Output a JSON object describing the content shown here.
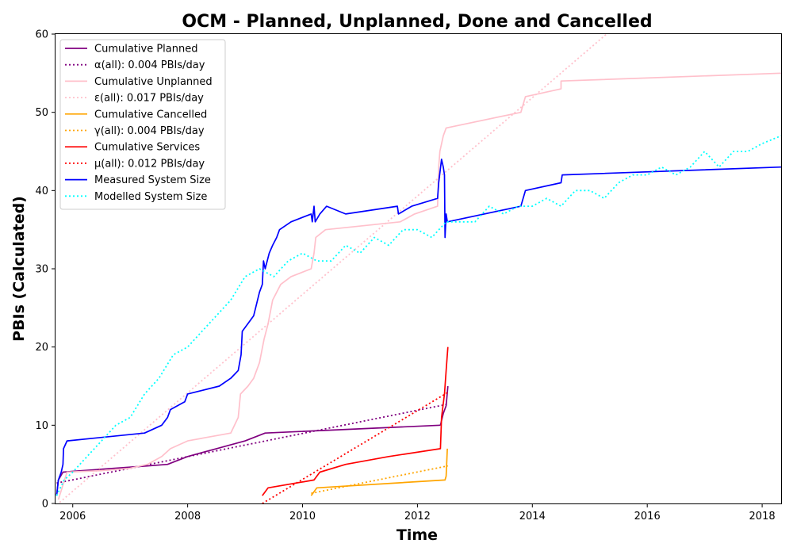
{
  "chart_data": {
    "type": "line",
    "title": "OCM - Planned, Unplanned, Done  and Cancelled",
    "xlabel": "Time",
    "ylabel": "PBIs (Calculated)",
    "xlim": [
      2005.7,
      2018.33
    ],
    "ylim": [
      0,
      60
    ],
    "xticks": [
      2006,
      2008,
      2010,
      2012,
      2014,
      2016,
      2018
    ],
    "yticks": [
      0,
      10,
      20,
      30,
      40,
      50,
      60
    ],
    "legend_position": "top-left",
    "series": [
      {
        "name": "Cumulative Planned",
        "style": "solid",
        "color": "#800080",
        "points": [
          [
            2005.72,
            1
          ],
          [
            2005.75,
            3
          ],
          [
            2005.83,
            4
          ],
          [
            2006.0,
            4.1
          ],
          [
            2007.3,
            4.8
          ],
          [
            2007.65,
            5
          ],
          [
            2008.0,
            6
          ],
          [
            2008.5,
            7
          ],
          [
            2009.0,
            8
          ],
          [
            2009.35,
            9
          ],
          [
            2012.4,
            10
          ]
        ],
        "tail": [
          [
            2012.4,
            10
          ],
          [
            2012.45,
            11.5
          ],
          [
            2012.5,
            12.5
          ],
          [
            2012.53,
            15
          ]
        ]
      },
      {
        "name": "α(all): 0.004 PBIs/day",
        "style": "dotted",
        "color": "#800080",
        "points": [
          [
            2005.72,
            2.6
          ],
          [
            2012.53,
            12.7
          ]
        ]
      },
      {
        "name": "Cumulative Unplanned",
        "style": "solid",
        "color": "#ffc0cb",
        "points": [
          [
            2005.75,
            0.5
          ],
          [
            2005.9,
            4
          ],
          [
            2006.5,
            4.2
          ],
          [
            2007.0,
            4.5
          ],
          [
            2007.3,
            5
          ],
          [
            2007.55,
            6
          ],
          [
            2007.7,
            7
          ],
          [
            2008.0,
            8
          ],
          [
            2008.3,
            8.4
          ],
          [
            2008.6,
            8.8
          ],
          [
            2008.75,
            9
          ],
          [
            2008.88,
            11
          ],
          [
            2008.92,
            14
          ],
          [
            2009.05,
            15
          ],
          [
            2009.15,
            16
          ],
          [
            2009.25,
            18
          ],
          [
            2009.33,
            21
          ],
          [
            2009.4,
            23
          ],
          [
            2009.48,
            26
          ],
          [
            2009.62,
            28
          ],
          [
            2009.8,
            29
          ],
          [
            2010.15,
            30
          ],
          [
            2010.2,
            32
          ],
          [
            2010.23,
            34
          ],
          [
            2010.4,
            35
          ],
          [
            2011.7,
            36
          ],
          [
            2011.95,
            37
          ],
          [
            2012.35,
            38
          ],
          [
            2012.37,
            43
          ],
          [
            2012.39,
            45
          ],
          [
            2012.45,
            47
          ],
          [
            2012.5,
            48
          ],
          [
            2013.8,
            50
          ],
          [
            2013.88,
            52
          ],
          [
            2014.5,
            53
          ],
          [
            2014.5,
            54
          ],
          [
            2018.33,
            55
          ]
        ]
      },
      {
        "name": "ε(all): 0.017 PBIs/day",
        "style": "dotted",
        "color": "#ffc0cb",
        "points": [
          [
            2005.72,
            -0.2
          ],
          [
            2015.45,
            61
          ]
        ]
      },
      {
        "name": "Cumulative Cancelled",
        "style": "solid",
        "color": "#ffa500",
        "points": [
          [
            2010.15,
            1
          ],
          [
            2010.25,
            2
          ],
          [
            2012.48,
            3
          ],
          [
            2012.5,
            3.5
          ],
          [
            2012.52,
            7
          ]
        ]
      },
      {
        "name": "γ(all): 0.004 PBIs/day",
        "style": "dotted",
        "color": "#ffa500",
        "points": [
          [
            2010.15,
            1.3
          ],
          [
            2012.53,
            4.8
          ]
        ]
      },
      {
        "name": "Cumulative Services",
        "style": "solid",
        "color": "#ff0000",
        "points": [
          [
            2009.3,
            1
          ],
          [
            2009.4,
            2
          ],
          [
            2010.2,
            3
          ],
          [
            2010.3,
            4
          ],
          [
            2010.75,
            5
          ],
          [
            2011.5,
            6
          ],
          [
            2012.4,
            7
          ],
          [
            2012.42,
            11
          ],
          [
            2012.47,
            14
          ],
          [
            2012.5,
            17
          ],
          [
            2012.53,
            20
          ]
        ]
      },
      {
        "name": "μ(all): 0.012 PBIs/day",
        "style": "dotted",
        "color": "#ff0000",
        "points": [
          [
            2009.3,
            0
          ],
          [
            2012.53,
            14.2
          ]
        ]
      },
      {
        "name": "Measured System Size",
        "style": "solid",
        "color": "#0000ff",
        "points": [
          [
            2005.72,
            1
          ],
          [
            2005.75,
            3
          ],
          [
            2005.8,
            4
          ],
          [
            2005.83,
            5
          ],
          [
            2005.84,
            7
          ],
          [
            2005.9,
            8
          ],
          [
            2007.25,
            9
          ],
          [
            2007.55,
            10
          ],
          [
            2007.65,
            11
          ],
          [
            2007.7,
            12
          ],
          [
            2007.95,
            13
          ],
          [
            2008.0,
            14
          ],
          [
            2008.55,
            15
          ],
          [
            2008.75,
            16
          ],
          [
            2008.88,
            17
          ],
          [
            2008.93,
            19
          ],
          [
            2008.95,
            22
          ],
          [
            2009.05,
            23
          ],
          [
            2009.15,
            24
          ],
          [
            2009.25,
            27
          ],
          [
            2009.3,
            28
          ],
          [
            2009.32,
            31
          ],
          [
            2009.35,
            30
          ],
          [
            2009.42,
            32
          ],
          [
            2009.48,
            33
          ],
          [
            2009.55,
            34
          ],
          [
            2009.6,
            35
          ],
          [
            2009.8,
            36
          ],
          [
            2010.15,
            37
          ],
          [
            2010.17,
            36
          ],
          [
            2010.2,
            38
          ],
          [
            2010.22,
            36
          ],
          [
            2010.3,
            37
          ],
          [
            2010.42,
            38
          ],
          [
            2010.75,
            37
          ],
          [
            2011.65,
            38
          ],
          [
            2011.67,
            37
          ],
          [
            2011.9,
            38
          ],
          [
            2012.35,
            39
          ],
          [
            2012.37,
            41
          ],
          [
            2012.42,
            44
          ],
          [
            2012.45,
            43
          ],
          [
            2012.47,
            42
          ],
          [
            2012.48,
            34
          ],
          [
            2012.5,
            37
          ],
          [
            2012.52,
            36
          ],
          [
            2013.8,
            38
          ],
          [
            2013.88,
            40
          ],
          [
            2014.5,
            41
          ],
          [
            2014.52,
            42
          ],
          [
            2018.33,
            43
          ]
        ]
      },
      {
        "name": "Modelled System Size",
        "style": "dotted",
        "color": "#00ffff",
        "points": [
          [
            2005.72,
            1
          ],
          [
            2005.85,
            3
          ],
          [
            2006.0,
            4
          ],
          [
            2006.25,
            6
          ],
          [
            2006.5,
            8
          ],
          [
            2006.75,
            10
          ],
          [
            2007.0,
            11
          ],
          [
            2007.25,
            14
          ],
          [
            2007.5,
            16
          ],
          [
            2007.75,
            19
          ],
          [
            2008.0,
            20
          ],
          [
            2008.25,
            22
          ],
          [
            2008.5,
            24
          ],
          [
            2008.75,
            26
          ],
          [
            2009.0,
            29
          ],
          [
            2009.25,
            30
          ],
          [
            2009.5,
            29
          ],
          [
            2009.75,
            31
          ],
          [
            2010.0,
            32
          ],
          [
            2010.25,
            31
          ],
          [
            2010.5,
            31
          ],
          [
            2010.75,
            33
          ],
          [
            2011.0,
            32
          ],
          [
            2011.25,
            34
          ],
          [
            2011.5,
            33
          ],
          [
            2011.75,
            35
          ],
          [
            2012.0,
            35
          ],
          [
            2012.25,
            34
          ],
          [
            2012.5,
            36
          ],
          [
            2012.75,
            36
          ],
          [
            2013.0,
            36
          ],
          [
            2013.25,
            38
          ],
          [
            2013.5,
            37
          ],
          [
            2013.75,
            38
          ],
          [
            2014.0,
            38
          ],
          [
            2014.25,
            39
          ],
          [
            2014.5,
            38
          ],
          [
            2014.75,
            40
          ],
          [
            2015.0,
            40
          ],
          [
            2015.25,
            39
          ],
          [
            2015.5,
            41
          ],
          [
            2015.75,
            42
          ],
          [
            2016.0,
            42
          ],
          [
            2016.25,
            43
          ],
          [
            2016.5,
            42
          ],
          [
            2016.75,
            43
          ],
          [
            2017.0,
            45
          ],
          [
            2017.25,
            43
          ],
          [
            2017.5,
            45
          ],
          [
            2017.75,
            45
          ],
          [
            2018.0,
            46
          ],
          [
            2018.33,
            47
          ]
        ]
      }
    ]
  }
}
